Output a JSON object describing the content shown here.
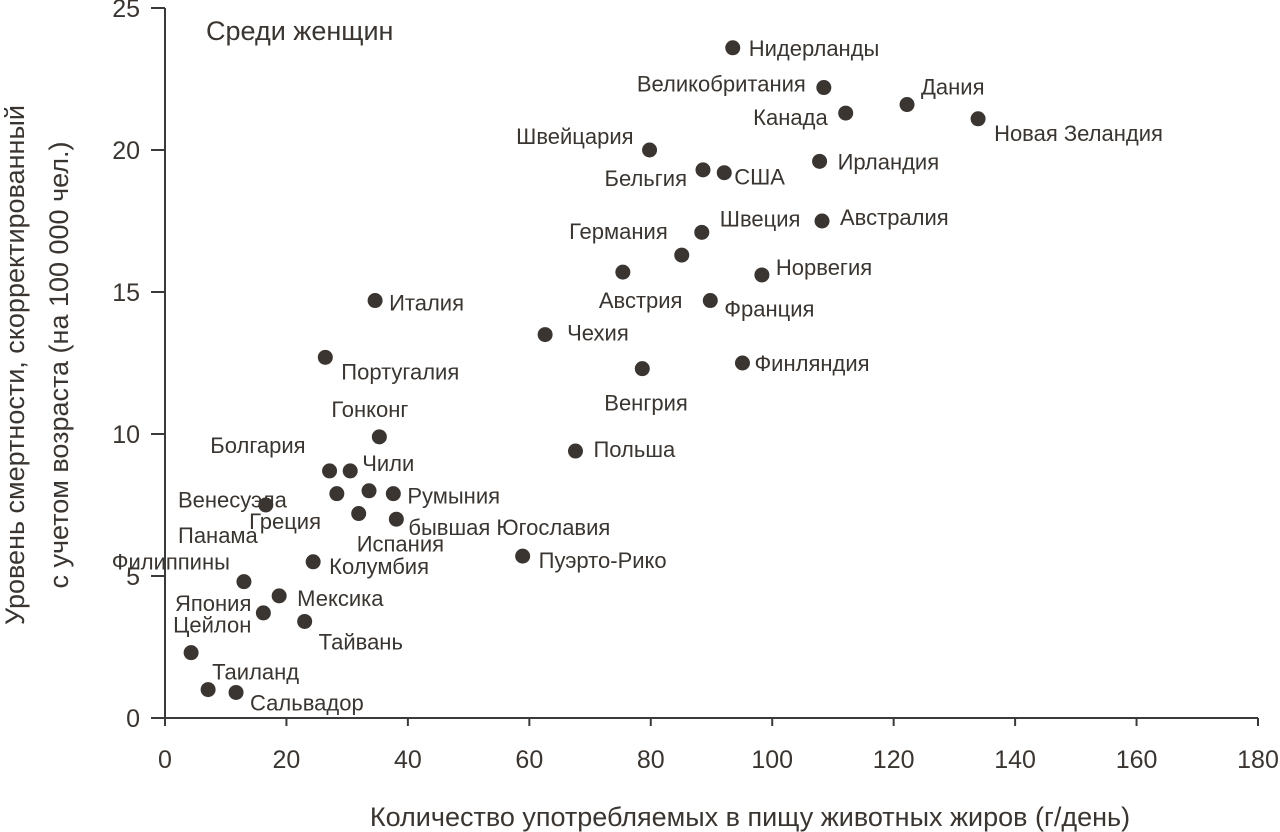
{
  "chart_data": {
    "type": "scatter",
    "title": "Среди женщин",
    "xlabel": "Количество употребляемых в пищу животных жиров (г/день)",
    "ylabel_line1": "Уровень смертности, скорректированный",
    "ylabel_line2": "с учетом возраста (на 100 000 чел.)",
    "xlim": [
      0,
      180
    ],
    "ylim": [
      0,
      25
    ],
    "x_ticks": [
      "0",
      "20",
      "40",
      "60",
      "80",
      "100",
      "120",
      "140",
      "160",
      "180"
    ],
    "y_ticks": [
      "0",
      "5",
      "10",
      "15",
      "20",
      "25"
    ],
    "grid": false,
    "points": [
      {
        "x": 93.5,
        "y": 23.6,
        "label": "Нидерланды"
      },
      {
        "x": 108.5,
        "y": 22.2,
        "label": "Великобритания"
      },
      {
        "x": 122.2,
        "y": 21.6,
        "label": "Дания"
      },
      {
        "x": 112.1,
        "y": 21.3,
        "label": "Канада"
      },
      {
        "x": 133.9,
        "y": 21.1,
        "label": "Новая Зеландия"
      },
      {
        "x": 79.8,
        "y": 20.0,
        "label": "Швейцария"
      },
      {
        "x": 88.6,
        "y": 19.3,
        "label": "Бельгия"
      },
      {
        "x": 92.1,
        "y": 19.2,
        "label": "США"
      },
      {
        "x": 107.8,
        "y": 19.6,
        "label": "Ирландия"
      },
      {
        "x": 88.4,
        "y": 17.1,
        "label": "Швеция"
      },
      {
        "x": 108.2,
        "y": 17.5,
        "label": "Австралия"
      },
      {
        "x": 85.1,
        "y": 16.3,
        "label": "Германия"
      },
      {
        "x": 75.4,
        "y": 15.7,
        "label": "Австрия"
      },
      {
        "x": 98.3,
        "y": 15.6,
        "label": "Норвегия"
      },
      {
        "x": 34.6,
        "y": 14.7,
        "label": "Италия"
      },
      {
        "x": 89.8,
        "y": 14.7,
        "label": "Франция"
      },
      {
        "x": 62.6,
        "y": 13.5,
        "label": "Чехия"
      },
      {
        "x": 26.4,
        "y": 12.7,
        "label": "Португалия"
      },
      {
        "x": 78.6,
        "y": 12.3,
        "label": "Венгрия"
      },
      {
        "x": 95.1,
        "y": 12.5,
        "label": "Финляндия"
      },
      {
        "x": 35.3,
        "y": 9.9,
        "label": "Гонконг"
      },
      {
        "x": 67.6,
        "y": 9.4,
        "label": "Польша"
      },
      {
        "x": 27.1,
        "y": 8.7,
        "label": "Болгария"
      },
      {
        "x": 30.5,
        "y": 8.7,
        "label": "Чили"
      },
      {
        "x": 28.3,
        "y": 7.9,
        "label": "Венесуэла"
      },
      {
        "x": 33.6,
        "y": 8.0,
        "label": "Греция"
      },
      {
        "x": 37.6,
        "y": 7.9,
        "label": "Румыния"
      },
      {
        "x": 16.6,
        "y": 7.5,
        "label": "Панама"
      },
      {
        "x": 31.9,
        "y": 7.2,
        "label": "Испания"
      },
      {
        "x": 38.1,
        "y": 7.0,
        "label": "бывшая Югославия"
      },
      {
        "x": 24.4,
        "y": 5.5,
        "label": "Колумбия"
      },
      {
        "x": 58.9,
        "y": 5.7,
        "label": "Пуэрто-Рико"
      },
      {
        "x": 13.0,
        "y": 4.8,
        "label": "Филиппины"
      },
      {
        "x": 18.8,
        "y": 4.3,
        "label": "Мексика"
      },
      {
        "x": 16.2,
        "y": 3.7,
        "label": "Япония"
      },
      {
        "x": 23.0,
        "y": 3.4,
        "label": "Тайвань"
      },
      {
        "x": 4.3,
        "y": 2.3,
        "label": "Цейлон"
      },
      {
        "x": 7.1,
        "y": 1.0,
        "label": "Таиланд"
      },
      {
        "x": 11.7,
        "y": 0.9,
        "label": "Сальвадор"
      }
    ]
  }
}
